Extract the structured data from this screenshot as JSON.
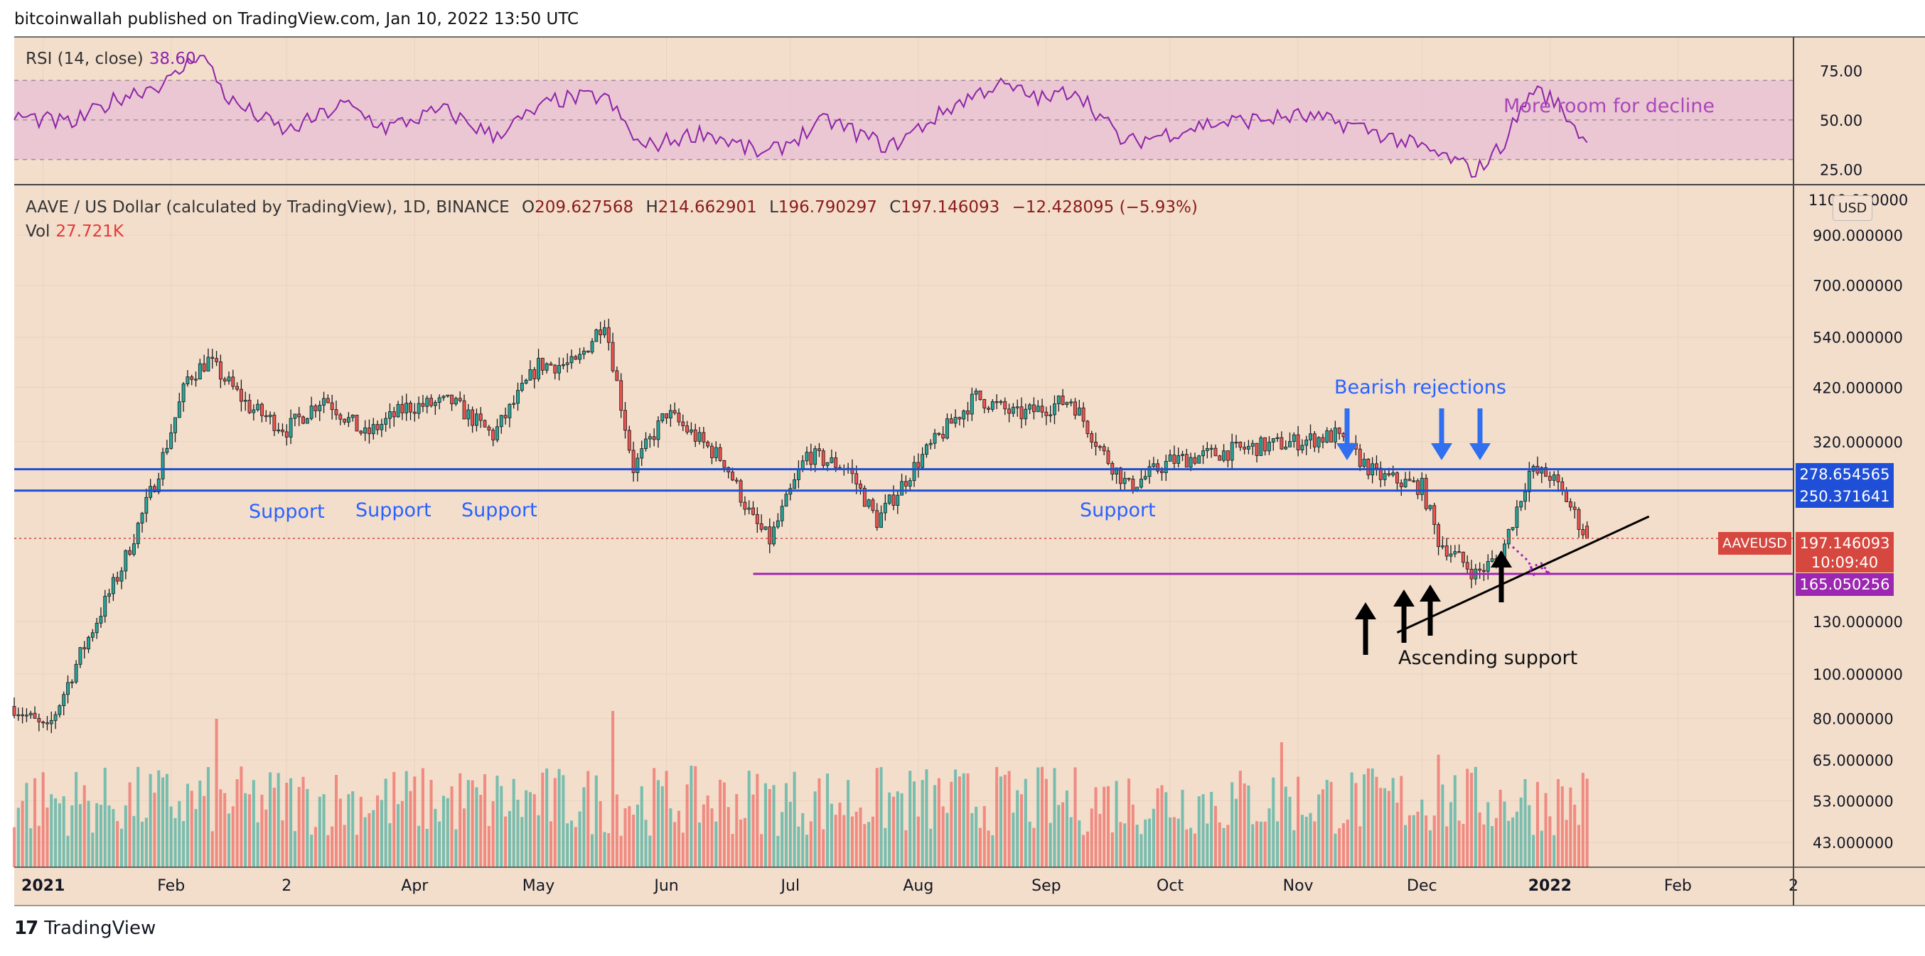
{
  "header": {
    "text": "bitcoinwallah published on TradingView.com, Jan 10, 2022 13:50 UTC"
  },
  "rsi": {
    "label": "RSI (14, close)",
    "value": "38.60",
    "ticks": [
      "75.00",
      "50.00",
      "25.00"
    ],
    "annotation": "More room for decline"
  },
  "ohlc": {
    "symbol": "AAVE / US Dollar (calculated by TradingView), 1D, BINANCE",
    "o_label": "O",
    "o": "209.627568",
    "h_label": "H",
    "h": "214.662901",
    "l_label": "L",
    "l": "196.790297",
    "c_label": "C",
    "c": "197.146093",
    "change": "−12.428095 (−5.93%)"
  },
  "volume": {
    "label": "Vol",
    "value": "27.721K"
  },
  "price_axis": {
    "currency": "USD",
    "top_cut_label": "1100.000000",
    "ticks": [
      "900.000000",
      "700.000000",
      "540.000000",
      "420.000000",
      "320.000000",
      "130.000000",
      "100.000000",
      "80.000000",
      "65.000000",
      "53.000000",
      "43.000000"
    ]
  },
  "price_labels": {
    "resistance_upper": "278.654565",
    "resistance_lower": "250.371641",
    "last_price": "197.146093",
    "countdown": "10:09:40",
    "ticker_tag": "AAVEUSD",
    "support_floor": "165.050256"
  },
  "time_axis": {
    "labels": [
      "2021",
      "Feb",
      "2",
      "Apr",
      "May",
      "Jun",
      "Jul",
      "Aug",
      "Sep",
      "Oct",
      "Nov",
      "Dec",
      "2022",
      "Feb",
      "2"
    ]
  },
  "annotations": {
    "support": [
      "Support",
      "Support",
      "Support",
      "Support"
    ],
    "bearish": "Bearish rejections",
    "ascending": "Ascending support"
  },
  "footer": {
    "brand": "TradingView"
  },
  "colors": {
    "background": "#f3decc",
    "up": "#26a69a",
    "down": "#ef5350",
    "support_line": "#1e4fd6",
    "floor_line": "#9c27b0",
    "rsi_line": "#8e24aa",
    "rsi_band": "#e7c3d2",
    "blue_text": "#2962ff",
    "arrow_blue": "#2f6ff0"
  },
  "chart_data": {
    "type": "candlestick",
    "title": "AAVE / US Dollar (calculated by TradingView), 1D, BINANCE",
    "scale": "log",
    "ylim": [
      38,
      1150
    ],
    "x_range": [
      "2020-12-25",
      "2022-03-01"
    ],
    "price_points": [
      [
        "2020-12-25",
        85
      ],
      [
        "2021-01-02",
        75
      ],
      [
        "2021-01-10",
        110
      ],
      [
        "2021-01-20",
        170
      ],
      [
        "2021-01-28",
        260
      ],
      [
        "2021-02-05",
        440
      ],
      [
        "2021-02-10",
        480
      ],
      [
        "2021-02-20",
        380
      ],
      [
        "2021-03-01",
        340
      ],
      [
        "2021-03-10",
        400
      ],
      [
        "2021-03-20",
        330
      ],
      [
        "2021-03-30",
        380
      ],
      [
        "2021-04-10",
        390
      ],
      [
        "2021-04-20",
        330
      ],
      [
        "2021-05-01",
        470
      ],
      [
        "2021-05-10",
        470
      ],
      [
        "2021-05-17",
        590
      ],
      [
        "2021-05-24",
        280
      ],
      [
        "2021-06-01",
        370
      ],
      [
        "2021-06-15",
        290
      ],
      [
        "2021-06-22",
        215
      ],
      [
        "2021-06-26",
        195
      ],
      [
        "2021-07-05",
        300
      ],
      [
        "2021-07-15",
        280
      ],
      [
        "2021-07-22",
        215
      ],
      [
        "2021-08-01",
        290
      ],
      [
        "2021-08-10",
        360
      ],
      [
        "2021-08-15",
        400
      ],
      [
        "2021-08-25",
        365
      ],
      [
        "2021-09-01",
        380
      ],
      [
        "2021-09-07",
        395
      ],
      [
        "2021-09-15",
        300
      ],
      [
        "2021-09-21",
        255
      ],
      [
        "2021-10-01",
        290
      ],
      [
        "2021-10-20",
        310
      ],
      [
        "2021-11-01",
        320
      ],
      [
        "2021-11-10",
        330
      ],
      [
        "2021-11-20",
        270
      ],
      [
        "2021-12-01",
        255
      ],
      [
        "2021-12-05",
        195
      ],
      [
        "2021-12-14",
        165
      ],
      [
        "2021-12-20",
        180
      ],
      [
        "2021-12-27",
        275
      ],
      [
        "2022-01-01",
        270
      ],
      [
        "2022-01-05",
        240
      ],
      [
        "2022-01-10",
        197
      ]
    ],
    "volume_peak_values": [
      [
        "2021-02-12",
        95
      ],
      [
        "2021-05-19",
        100
      ],
      [
        "2021-10-28",
        80
      ],
      [
        "2021-12-05",
        72
      ]
    ],
    "horizontal_levels": [
      {
        "label": "278.654565",
        "value": 278.654565
      },
      {
        "label": "250.371641",
        "value": 250.371641
      },
      {
        "label": "165.050256",
        "value": 165.050256,
        "from": "2021-06-22"
      }
    ],
    "trendline": {
      "from": [
        "2021-11-25",
        123
      ],
      "to": [
        "2022-01-25",
        220
      ]
    },
    "last_price": 197.146093,
    "rsi": {
      "ylim": [
        18,
        92
      ],
      "band": [
        30,
        70
      ],
      "points": [
        [
          "2020-12-25",
          52
        ],
        [
          "2021-01-08",
          48
        ],
        [
          "2021-01-20",
          62
        ],
        [
          "2021-02-01",
          70
        ],
        [
          "2021-02-08",
          85
        ],
        [
          "2021-02-15",
          60
        ],
        [
          "2021-03-01",
          44
        ],
        [
          "2021-03-15",
          58
        ],
        [
          "2021-03-25",
          46
        ],
        [
          "2021-04-08",
          55
        ],
        [
          "2021-04-20",
          42
        ],
        [
          "2021-05-05",
          60
        ],
        [
          "2021-05-17",
          62
        ],
        [
          "2021-05-26",
          36
        ],
        [
          "2021-06-10",
          44
        ],
        [
          "2021-06-25",
          32
        ],
        [
          "2021-07-10",
          50
        ],
        [
          "2021-07-25",
          36
        ],
        [
          "2021-08-10",
          58
        ],
        [
          "2021-08-20",
          68
        ],
        [
          "2021-09-01",
          60
        ],
        [
          "2021-09-08",
          66
        ],
        [
          "2021-09-20",
          38
        ],
        [
          "2021-10-10",
          48
        ],
        [
          "2021-11-01",
          52
        ],
        [
          "2021-11-15",
          47
        ],
        [
          "2021-11-28",
          38
        ],
        [
          "2021-12-08",
          30
        ],
        [
          "2021-12-14",
          24
        ],
        [
          "2021-12-20",
          36
        ],
        [
          "2021-12-28",
          66
        ],
        [
          "2022-01-03",
          58
        ],
        [
          "2022-01-10",
          38.6
        ]
      ]
    }
  }
}
